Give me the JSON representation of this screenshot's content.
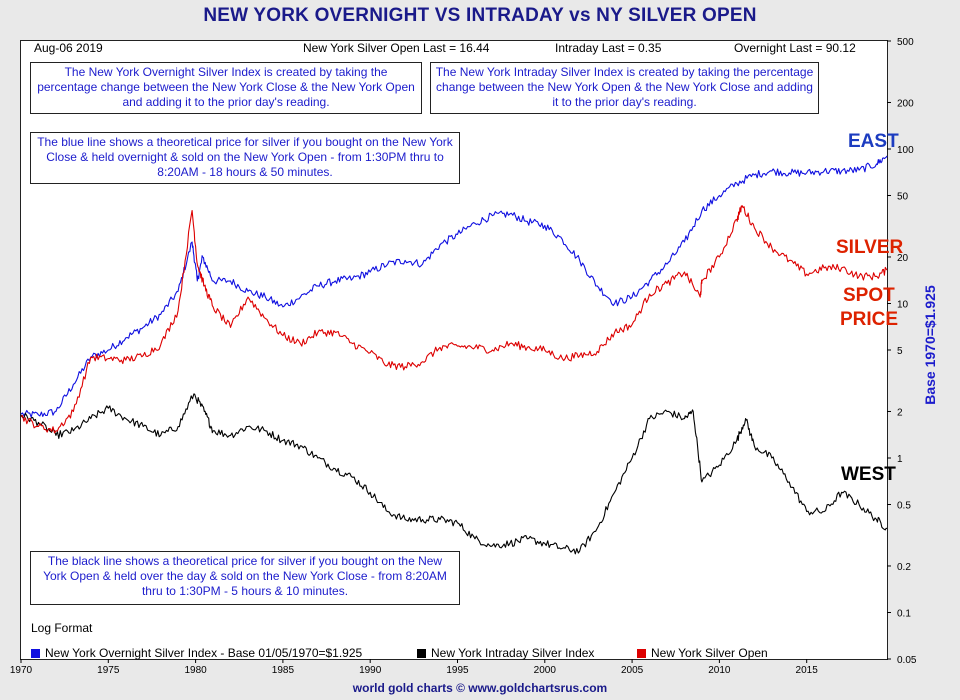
{
  "title": "NEW YORK OVERNIGHT VS INTRADAY vs NY SILVER OPEN",
  "header": {
    "date": "Aug-06  2019",
    "silver_open_last": "New York Silver Open Last = 16.44",
    "intraday_last": "Intraday Last = 0.35",
    "overnight_last": "Overnight Last = 90.12"
  },
  "notes": {
    "overnight_def": "The New York Overnight Silver Index is created by taking the percentage change between the New York Close & the New York Open and adding it to the prior day's reading.",
    "intraday_def": "The New York Intraday Silver Index is created by taking the percentage change between the New York Open & the New York Close and adding it to the prior day's reading.",
    "blue_line": "The blue line shows a theoretical price for silver if you bought on the New York Close & held overnight & sold on the New York Open - from 1:30PM thru to 8:20AM - 18 hours & 50 minutes.",
    "black_line": "The black line shows a theoretical price for silver if you bought on the New York Open & held over the day & sold on the New York Close - from 8:20AM thru to 1:30PM - 5 hours & 10 minutes."
  },
  "side_labels": {
    "east": "EAST",
    "silver_spot_1": "SILVER",
    "silver_spot_2": "SPOT",
    "silver_spot_3": "PRICE",
    "west": "WEST"
  },
  "log_format": "Log Format",
  "legend": {
    "overnight": "New York Overnight Silver Index - Base 01/05/1970=$1.925",
    "intraday": "New York Intraday Silver Index",
    "silver_open": "New York Silver Open"
  },
  "footer": "world gold charts © www.goldchartsrus.com",
  "y_axis_label": "Base 1970=$1.925",
  "colors": {
    "overnight": "#1010e0",
    "intraday": "#000000",
    "silver_open": "#dd0000",
    "frame": "#222222"
  },
  "chart_data": {
    "type": "line",
    "title": "NEW YORK OVERNIGHT VS INTRADAY vs NY SILVER OPEN",
    "xlabel": "",
    "ylabel": "Base 1970=$1.925",
    "y_scale": "log",
    "xlim": [
      1970,
      2019.6
    ],
    "ylim": [
      0.05,
      500
    ],
    "x_ticks": [
      1970,
      1975,
      1980,
      1985,
      1990,
      1995,
      2000,
      2005,
      2010,
      2015
    ],
    "y_ticks": [
      0.05,
      0.1,
      0.2,
      0.5,
      1,
      2,
      5,
      10,
      20,
      50,
      100,
      200,
      500
    ],
    "grid": false,
    "legend_position": "bottom",
    "series": [
      {
        "name": "New York Overnight Silver Index - Base 01/05/1970=$1.925",
        "color": "#1010e0",
        "x": [
          1970,
          1971,
          1972,
          1973,
          1974,
          1975,
          1976,
          1977,
          1978,
          1979,
          1979.8,
          1980.1,
          1980.4,
          1981,
          1982,
          1983,
          1984,
          1985,
          1986,
          1987,
          1988,
          1989,
          1990,
          1991,
          1992,
          1993,
          1994,
          1995,
          1996,
          1997,
          1998,
          1999,
          2000,
          2001,
          2002,
          2003,
          2004,
          2005,
          2006,
          2007,
          2008,
          2009,
          2010,
          2011,
          2012,
          2013,
          2014,
          2015,
          2016,
          2017,
          2018,
          2019,
          2019.6
        ],
        "y": [
          1.925,
          1.9,
          2.0,
          3.0,
          4.5,
          5.0,
          6.0,
          7.0,
          8.5,
          12.0,
          25.0,
          14.0,
          20.0,
          14.0,
          14.0,
          12.0,
          11.0,
          9.5,
          11.0,
          13.0,
          14.0,
          14.5,
          16.0,
          18.0,
          19.0,
          18.0,
          24.0,
          28.0,
          33.0,
          37.0,
          38.0,
          34.0,
          32.0,
          26.0,
          19.0,
          13.0,
          10.0,
          11.0,
          14.0,
          18.0,
          25.0,
          40.0,
          50.0,
          60.0,
          68.0,
          72.0,
          70.0,
          70.0,
          72.0,
          72.0,
          73.0,
          80.0,
          90.12
        ]
      },
      {
        "name": "New York Intraday Silver Index",
        "color": "#000000",
        "x": [
          1970,
          1971,
          1972,
          1973,
          1974,
          1975,
          1976,
          1977,
          1978,
          1979,
          1979.9,
          1980.5,
          1981,
          1982,
          1983,
          1984,
          1985,
          1986,
          1987,
          1988,
          1989,
          1990,
          1991,
          1992,
          1993,
          1994,
          1995,
          1996,
          1997,
          1998,
          1999,
          2000,
          2001,
          2002,
          2003,
          2004,
          2005,
          2006,
          2007,
          2008,
          2008.5,
          2009,
          2010,
          2011,
          2011.5,
          2012,
          2013,
          2014,
          2015,
          2016,
          2017,
          2018,
          2019,
          2019.6
        ],
        "y": [
          1.9,
          1.7,
          1.4,
          1.5,
          1.8,
          2.1,
          1.8,
          1.6,
          1.4,
          1.6,
          2.6,
          2.0,
          1.5,
          1.4,
          1.6,
          1.5,
          1.3,
          1.2,
          1.0,
          0.85,
          0.75,
          0.6,
          0.45,
          0.4,
          0.4,
          0.4,
          0.38,
          0.3,
          0.27,
          0.28,
          0.3,
          0.28,
          0.26,
          0.25,
          0.35,
          0.6,
          1.0,
          1.8,
          2.0,
          1.8,
          2.0,
          0.7,
          0.9,
          1.3,
          1.8,
          1.2,
          1.0,
          0.7,
          0.45,
          0.45,
          0.6,
          0.5,
          0.4,
          0.35
        ]
      },
      {
        "name": "New York Silver Open",
        "color": "#dd0000",
        "x": [
          1970,
          1971,
          1972,
          1973,
          1974,
          1975,
          1976,
          1977,
          1978,
          1979,
          1979.8,
          1980.1,
          1980.5,
          1981,
          1982,
          1983,
          1984,
          1985,
          1986,
          1987,
          1988,
          1989,
          1990,
          1991,
          1992,
          1993,
          1994,
          1995,
          1996,
          1997,
          1998,
          1999,
          2000,
          2001,
          2002,
          2003,
          2004,
          2005,
          2006,
          2007,
          2008,
          2008.9,
          2009,
          2010,
          2011,
          2011.3,
          2012,
          2013,
          2014,
          2015,
          2016,
          2017,
          2018,
          2019,
          2019.6
        ],
        "y": [
          1.85,
          1.6,
          1.5,
          2.0,
          4.5,
          4.4,
          4.3,
          4.6,
          5.4,
          9.0,
          40.0,
          18.0,
          13.0,
          9.5,
          7.0,
          11.0,
          8.0,
          6.2,
          5.5,
          6.5,
          6.5,
          5.5,
          4.8,
          4.0,
          3.9,
          4.2,
          5.2,
          5.3,
          5.2,
          5.0,
          5.5,
          5.2,
          5.0,
          4.4,
          4.6,
          4.9,
          6.5,
          7.3,
          11.5,
          13.5,
          16.0,
          11.0,
          14.0,
          20.0,
          35.0,
          43.0,
          31.0,
          23.0,
          19.0,
          15.5,
          17.0,
          17.0,
          15.0,
          15.0,
          16.44
        ]
      }
    ]
  }
}
